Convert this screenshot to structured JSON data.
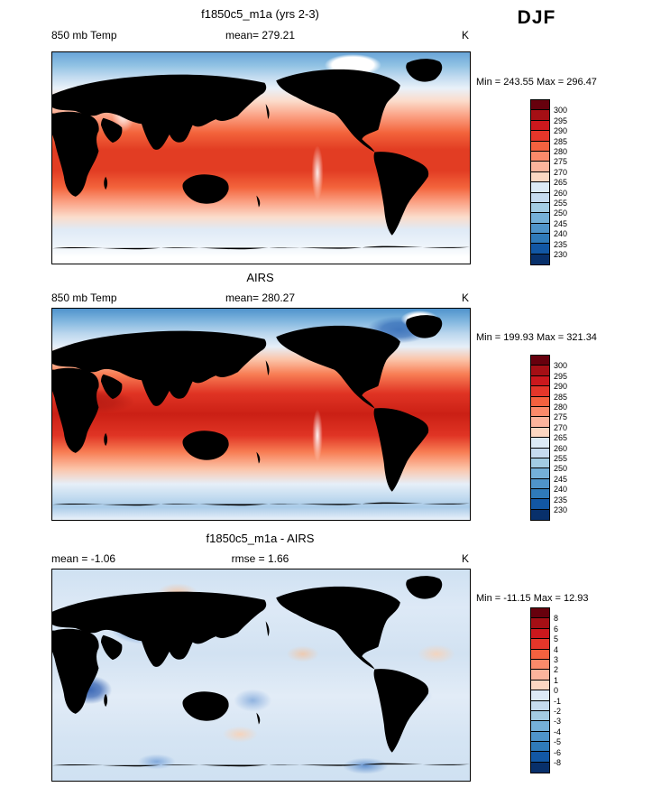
{
  "header": {
    "season": "DJF"
  },
  "panels": [
    {
      "title": "f1850c5_m1a (yrs 2-3)",
      "left_label": "850 mb Temp",
      "center_label": "mean= 279.21",
      "right_label": "K",
      "stats": "Min = 243.55 Max = 296.47"
    },
    {
      "title": "AIRS",
      "left_label": "850 mb Temp",
      "center_label": "mean= 280.27",
      "right_label": "K",
      "stats": "Min = 199.93 Max = 321.34"
    },
    {
      "title": "f1850c5_m1a - AIRS",
      "left_label": "mean = -1.06",
      "center_label": "rmse =  1.66",
      "right_label": "K",
      "stats": "Min = -11.15 Max =  12.93"
    }
  ],
  "colorbars": {
    "temperature": {
      "units": "K",
      "colors": [
        "#67000d",
        "#a50f15",
        "#cb181d",
        "#e4362a",
        "#f4613f",
        "#fb8a6a",
        "#fcb49c",
        "#fcd7c2",
        "#dceaf6",
        "#c6dbef",
        "#a3cce3",
        "#75b0d8",
        "#4f94ca",
        "#2f7ab9",
        "#1257a4",
        "#08306b"
      ],
      "labels": [
        "300",
        "295",
        "290",
        "285",
        "280",
        "275",
        "270",
        "265",
        "260",
        "255",
        "250",
        "245",
        "240",
        "235",
        "230"
      ]
    },
    "difference": {
      "units": "K",
      "colors": [
        "#67000d",
        "#a50f15",
        "#cb181d",
        "#e4362a",
        "#f4613f",
        "#fb8a6a",
        "#fcb49c",
        "#fcd7c2",
        "#dceaf6",
        "#c6dbef",
        "#a3cce3",
        "#75b0d8",
        "#4f94ca",
        "#2f7ab9",
        "#1257a4",
        "#08306b"
      ],
      "labels": [
        "8",
        "6",
        "5",
        "4",
        "3",
        "2",
        "1",
        "0",
        "-1",
        "-2",
        "-3",
        "-4",
        "-5",
        "-6",
        "-8"
      ]
    }
  },
  "chart_data": [
    {
      "type": "heatmap",
      "title": "f1850c5_m1a (yrs 2-3)",
      "variable": "850 mb Temp",
      "season": "DJF",
      "units": "K",
      "mean": 279.21,
      "min": 243.55,
      "max": 296.47,
      "contour_levels": [
        230,
        235,
        240,
        245,
        250,
        255,
        260,
        265,
        270,
        275,
        280,
        285,
        290,
        295,
        300
      ],
      "palette": "dark-blue to dark-red filled contours",
      "projection": "global cylindrical, Pacific-less 0-360 longitude",
      "legend_position": "right"
    },
    {
      "type": "heatmap",
      "title": "AIRS",
      "variable": "850 mb Temp",
      "season": "DJF",
      "units": "K",
      "mean": 280.27,
      "min": 199.93,
      "max": 321.34,
      "contour_levels": [
        230,
        235,
        240,
        245,
        250,
        255,
        260,
        265,
        270,
        275,
        280,
        285,
        290,
        295,
        300
      ],
      "palette": "dark-blue to dark-red filled contours",
      "projection": "global cylindrical, 0-360 longitude",
      "legend_position": "right"
    },
    {
      "type": "heatmap",
      "title": "f1850c5_m1a - AIRS",
      "variable": "850 mb Temp difference",
      "season": "DJF",
      "units": "K",
      "mean": -1.06,
      "rmse": 1.66,
      "min": -11.15,
      "max": 12.93,
      "contour_levels": [
        -8,
        -6,
        -5,
        -4,
        -3,
        -2,
        -1,
        0,
        1,
        2,
        3,
        4,
        5,
        6,
        8
      ],
      "palette": "dark-blue to dark-red filled contours",
      "projection": "global cylindrical, 0-360 longitude",
      "legend_position": "right"
    }
  ]
}
